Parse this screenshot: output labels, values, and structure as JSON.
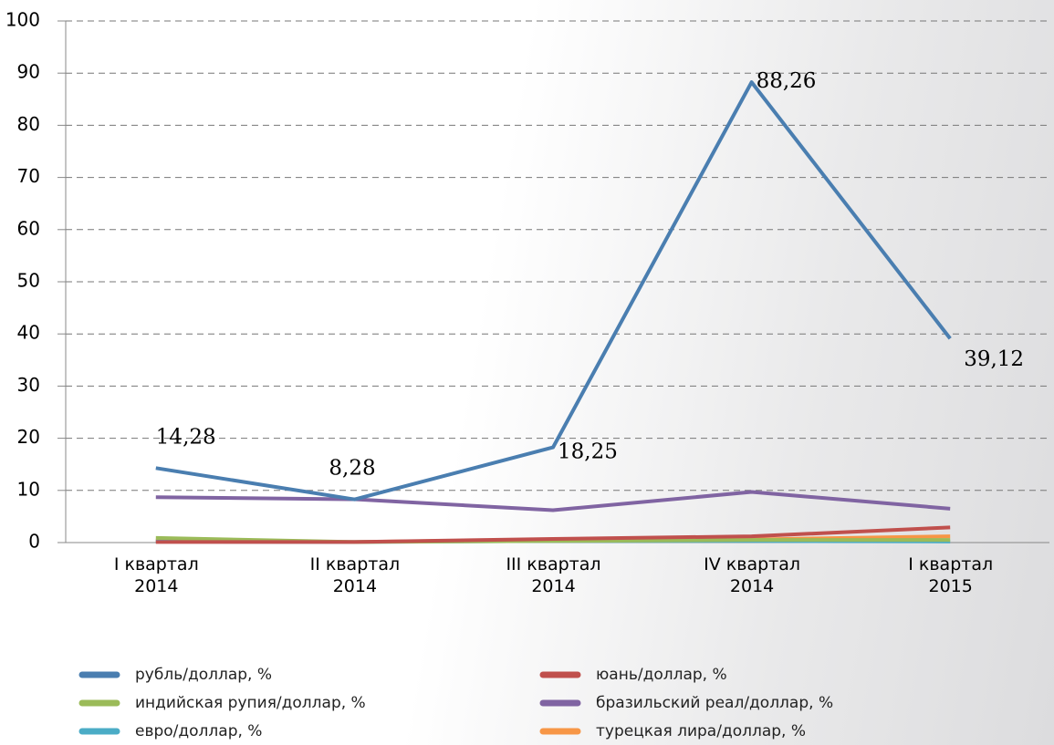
{
  "chart_data": {
    "type": "line",
    "categories": [
      "I квартал 2014",
      "II квартал 2014",
      "III квартал 2014",
      "IV квартал 2014",
      "I квартал 2015"
    ],
    "series": [
      {
        "name": "рубль/доллар, %",
        "color": "#4a7eb0",
        "values": [
          14.28,
          8.28,
          18.25,
          88.26,
          39.12
        ],
        "value_labels": [
          "14,28",
          "8,28",
          "18,25",
          "88,26",
          "39,12"
        ]
      },
      {
        "name": "юань/доллар, %",
        "color": "#c0504d",
        "values": [
          0.1,
          0.1,
          0.7,
          1.2,
          2.9
        ]
      },
      {
        "name": "индийская рупия/доллар, %",
        "color": "#9bbb59",
        "values": [
          0.9,
          0.1,
          0.3,
          0.5,
          0.5
        ]
      },
      {
        "name": "бразильский реал/доллар, %",
        "color": "#8064a2",
        "values": [
          8.7,
          8.3,
          6.2,
          9.7,
          6.5
        ]
      },
      {
        "name": "евро/доллар, %",
        "color": "#4bacc6",
        "values": [
          0.2,
          0.1,
          0.3,
          0.3,
          0.2
        ]
      },
      {
        "name": "турецкая лира/доллар, %",
        "color": "#f79646",
        "values": [
          0.4,
          0.1,
          0.6,
          0.6,
          1.2
        ]
      }
    ],
    "ylim": [
      0,
      100
    ],
    "yticks": [
      0,
      10,
      20,
      30,
      40,
      50,
      60,
      70,
      80,
      90,
      100
    ],
    "grid": true
  }
}
